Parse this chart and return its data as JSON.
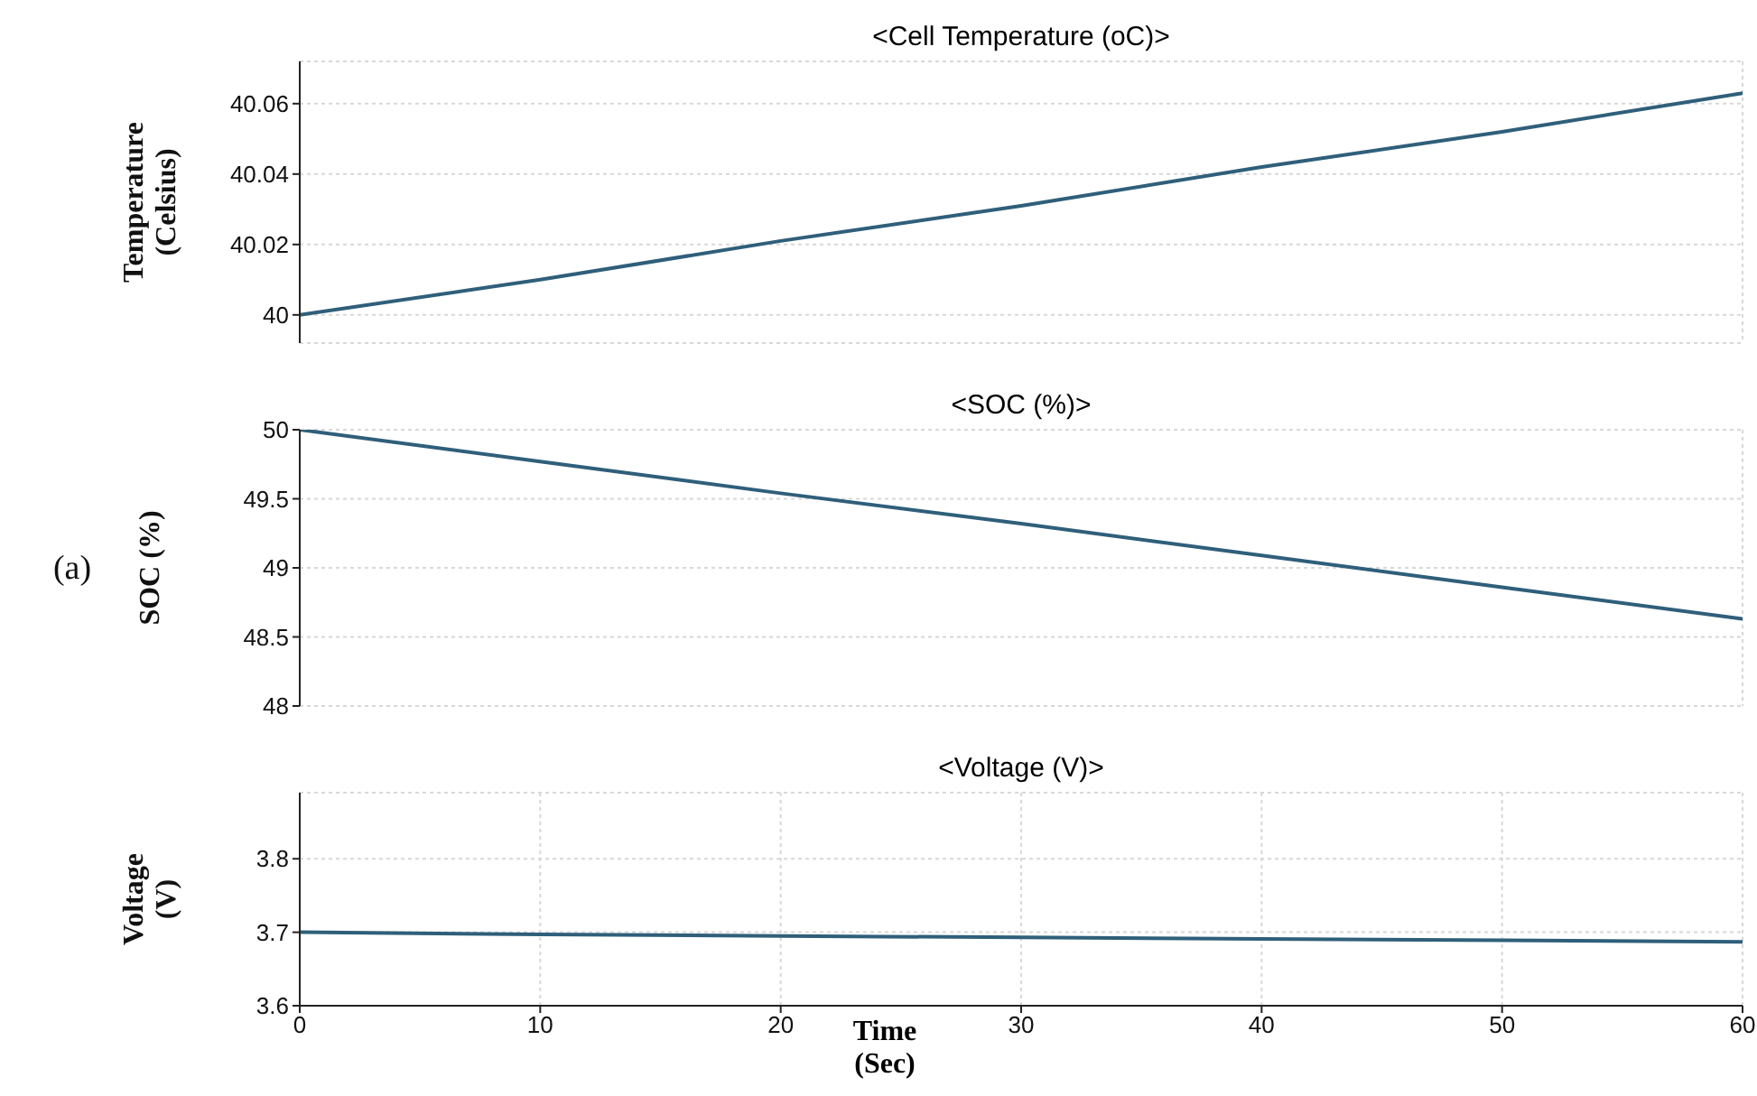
{
  "chart_data": [
    {
      "type": "line",
      "title": "<Cell Temperature (oC)>",
      "ylabel": "Temperature\n(Celsius)",
      "x": [
        0,
        10,
        20,
        30,
        40,
        50,
        60
      ],
      "series": [
        {
          "color": "#2f5f7a",
          "values": [
            40,
            40.01,
            40.021,
            40.031,
            40.042,
            40.052,
            40.063
          ]
        }
      ],
      "xlim": [
        0,
        60
      ],
      "xticks": [
        0,
        10,
        20,
        30,
        40,
        50,
        60
      ],
      "ylim": [
        39.992,
        40.072
      ],
      "yticks": [
        40,
        40.02,
        40.04,
        40.06
      ],
      "grid": true,
      "tick_labels": "y",
      "legend": false
    },
    {
      "type": "line",
      "title": "<SOC (%)>",
      "ylabel": "SOC (%)",
      "annotations": [
        "(a)"
      ],
      "x": [
        0,
        10,
        20,
        30,
        40,
        50,
        60
      ],
      "series": [
        {
          "color": "#2f5f7a",
          "values": [
            50,
            49.77,
            49.54,
            49.32,
            49.09,
            48.86,
            48.63
          ]
        }
      ],
      "xlim": [
        0,
        60
      ],
      "xticks": [
        0,
        10,
        20,
        30,
        40,
        50,
        60
      ],
      "ylim": [
        48,
        50
      ],
      "yticks": [
        48,
        48.5,
        49,
        49.5,
        50
      ],
      "grid": true,
      "tick_labels": "y",
      "legend": false
    },
    {
      "type": "line",
      "title": "<Voltage (V)>",
      "ylabel": "Voltage\n(V)",
      "xlabel": "Time\n(Sec)",
      "x": [
        0,
        10,
        20,
        30,
        40,
        50,
        60
      ],
      "series": [
        {
          "color": "#2f5f7a",
          "values": [
            3.7,
            3.697,
            3.695,
            3.693,
            3.691,
            3.689,
            3.687
          ]
        }
      ],
      "xlim": [
        0,
        60
      ],
      "xticks": [
        0,
        10,
        20,
        30,
        40,
        50,
        60
      ],
      "ylim": [
        3.6,
        3.89
      ],
      "yticks": [
        3.6,
        3.7,
        3.8
      ],
      "grid": true,
      "legend": false
    }
  ]
}
